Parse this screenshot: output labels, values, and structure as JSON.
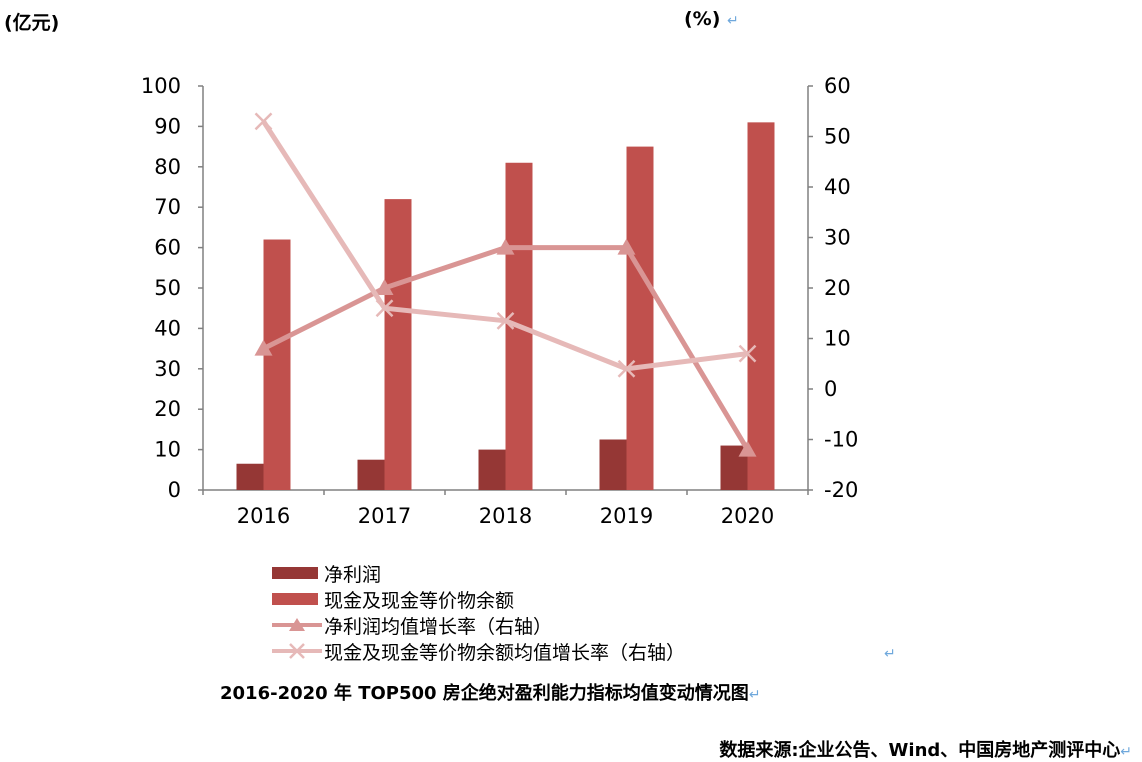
{
  "header": {
    "left_unit": "(亿元)",
    "right_unit": "(%)"
  },
  "chart_data": {
    "type": "bar",
    "categories": [
      "2016",
      "2017",
      "2018",
      "2019",
      "2020"
    ],
    "left_axis": {
      "ylim": [
        0,
        100
      ],
      "ticks": [
        "0",
        "10",
        "20",
        "30",
        "40",
        "50",
        "60",
        "70",
        "80",
        "90",
        "100"
      ]
    },
    "right_axis": {
      "ylim": [
        -20,
        60
      ],
      "ticks": [
        "-20",
        "-10",
        "0",
        "10",
        "20",
        "30",
        "40",
        "50",
        "60"
      ]
    },
    "series": [
      {
        "name": "净利润",
        "type": "bar",
        "axis": "left",
        "color": "#953735",
        "values": [
          6.5,
          7.5,
          10,
          12.5,
          11
        ]
      },
      {
        "name": "现金及现金等价物余额",
        "type": "bar",
        "axis": "left",
        "color": "#c0504d",
        "values": [
          62,
          72,
          81,
          85,
          91
        ]
      },
      {
        "name": "净利润均值增长率（右轴）",
        "type": "line",
        "axis": "right",
        "marker": "triangle",
        "color": "#d99594",
        "values": [
          8,
          20,
          28,
          28,
          -12
        ]
      },
      {
        "name": "现金及现金等价物余额均值增长率（右轴）",
        "type": "line",
        "axis": "right",
        "marker": "x",
        "color": "#e6b9b8",
        "values": [
          53,
          16,
          13.5,
          4,
          7
        ]
      }
    ],
    "grid": false,
    "legend_position": "bottom"
  },
  "caption": "2016-2020 年 TOP500 房企绝对盈利能力指标均值变动情况图",
  "source": "数据来源:企业公告、Wind、中国房地产测评中心"
}
